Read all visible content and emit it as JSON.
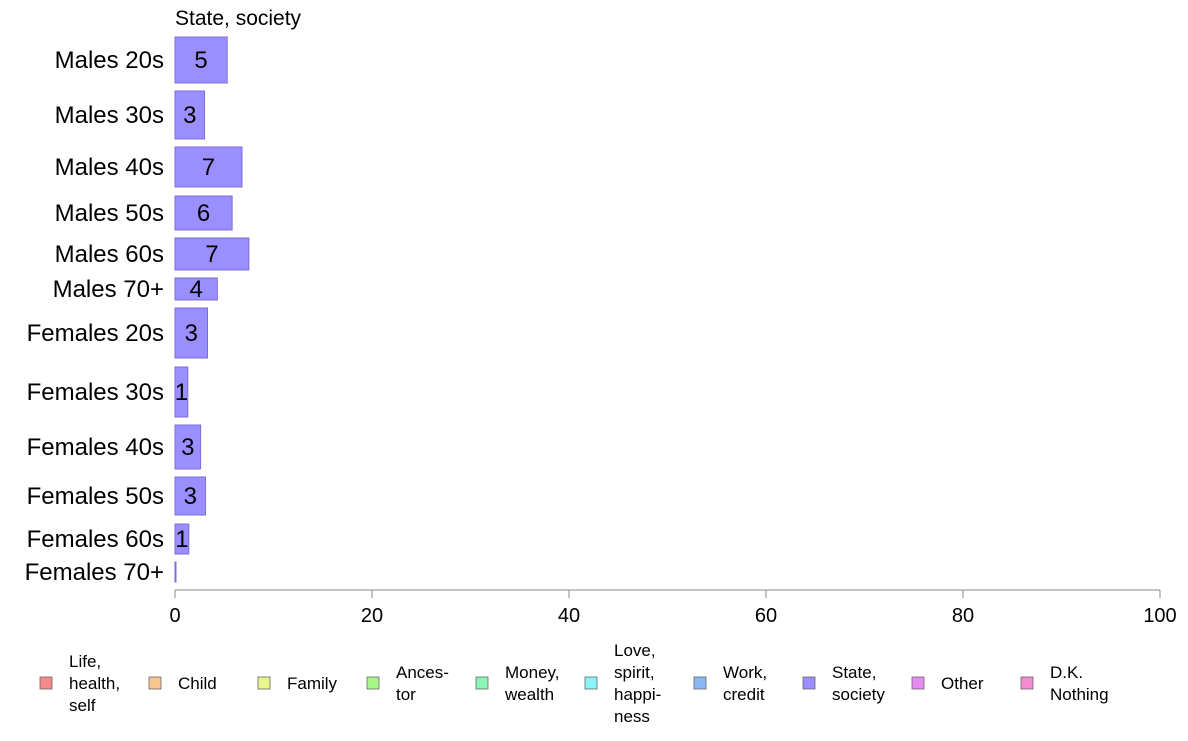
{
  "chart_data": {
    "type": "bar",
    "orientation": "horizontal",
    "title": "State, society",
    "categories": [
      "Males 20s",
      "Males 30s",
      "Males 40s",
      "Males 50s",
      "Males 60s",
      "Males 70+",
      "Females 20s",
      "Females 30s",
      "Females 40s",
      "Females 50s",
      "Females 60s",
      "Females 70+"
    ],
    "values": [
      5.3,
      3.0,
      6.8,
      5.8,
      7.5,
      4.3,
      3.3,
      1.3,
      2.6,
      3.1,
      1.4,
      0.1
    ],
    "value_labels": [
      "5",
      "3",
      "7",
      "6",
      "7",
      "4",
      "3",
      "1",
      "3",
      "3",
      "1",
      ""
    ],
    "xlim": [
      0,
      100
    ],
    "xticks": [
      0,
      20,
      40,
      60,
      80,
      100
    ],
    "xtick_labels": [
      "0",
      "20",
      "40",
      "60",
      "80",
      "100"
    ],
    "xlabel": "",
    "ylabel": "",
    "grid": false,
    "bar_color": "#9b8fff",
    "bar_border_color": "#7a6fd8",
    "legend_placement": "bottom",
    "legend": [
      {
        "lines": [
          "Life,",
          "health,",
          "self"
        ],
        "color": "#f58a8a"
      },
      {
        "lines": [
          "Child"
        ],
        "color": "#f8c58a"
      },
      {
        "lines": [
          "Family"
        ],
        "color": "#e8f58a"
      },
      {
        "lines": [
          "Ances-",
          "tor"
        ],
        "color": "#a8f58a"
      },
      {
        "lines": [
          "Money,",
          "wealth"
        ],
        "color": "#8af5b5"
      },
      {
        "lines": [
          "Love,",
          "spirit,",
          "happi-",
          "ness"
        ],
        "color": "#8af5f5"
      },
      {
        "lines": [
          "Work,",
          "credit"
        ],
        "color": "#8ab8f5"
      },
      {
        "lines": [
          "State,",
          "society"
        ],
        "color": "#9b8fff"
      },
      {
        "lines": [
          "Other"
        ],
        "color": "#e88af5"
      },
      {
        "lines": [
          "D.K.",
          "Nothing"
        ],
        "color": "#f58ad0"
      }
    ]
  }
}
